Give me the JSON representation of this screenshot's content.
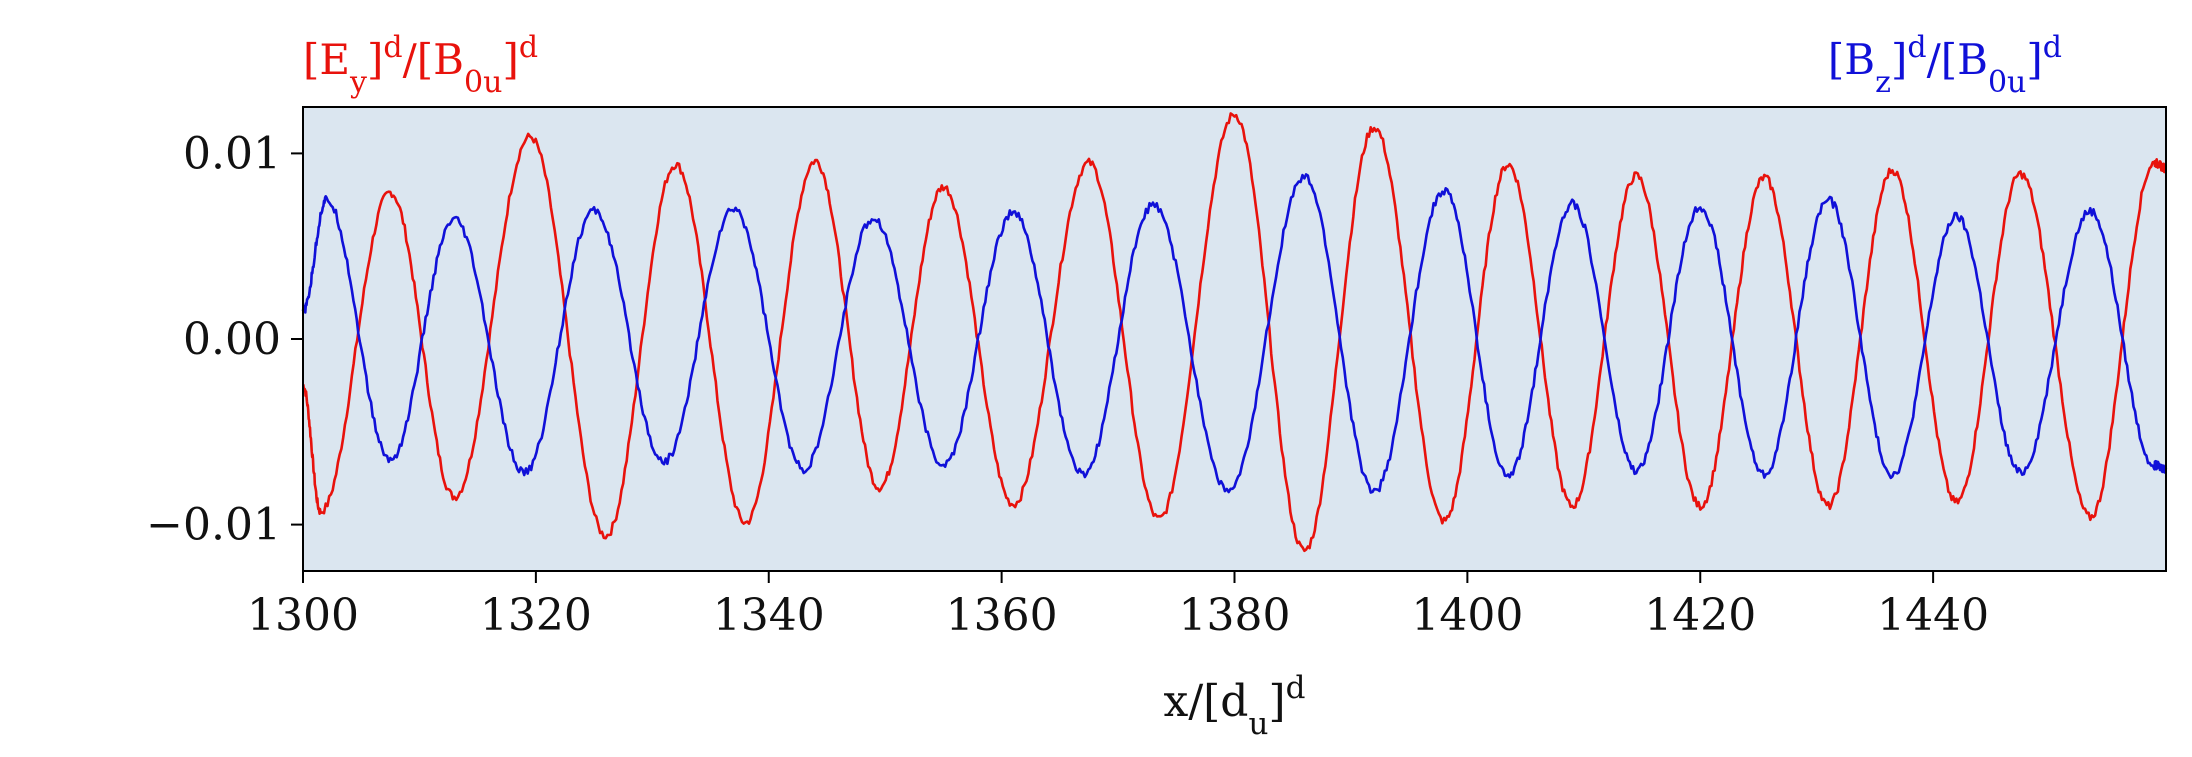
{
  "chart_data": {
    "type": "line",
    "xlabel": {
      "base": "x/[d",
      "sub": "u",
      "tail": "]",
      "sup": "d"
    },
    "xlim": [
      1300,
      1460
    ],
    "ylim": [
      -0.0125,
      0.0125
    ],
    "xticks": [
      1300,
      1320,
      1340,
      1360,
      1380,
      1400,
      1420,
      1440
    ],
    "xtick_labels": [
      "1300",
      "1320",
      "1340",
      "1360",
      "1380",
      "1400",
      "1420",
      "1440"
    ],
    "yticks": [
      0.01,
      0.0,
      -0.01
    ],
    "ytick_labels": [
      "0.01",
      "0.00",
      "−0.01"
    ],
    "grid": false,
    "background": "#dbe6f0",
    "legend_placement": "above-plot",
    "series": [
      {
        "name": "[Ey]d/[B0u]d",
        "label_parts": {
          "a": "[E",
          "a_sub": "y",
          "b": "]",
          "b_sup": "d",
          "c": "/[B",
          "c_sub": "0u",
          "d": "]",
          "d_sup": "d"
        },
        "color": "#e8120c",
        "x": [
          1300.0,
          1301.5,
          1307.5,
          1313.0,
          1319.5,
          1326.0,
          1332.0,
          1338.0,
          1344.0,
          1349.5,
          1355.0,
          1361.0,
          1367.5,
          1373.5,
          1380.0,
          1386.0,
          1392.0,
          1398.0,
          1403.5,
          1409.0,
          1414.5,
          1420.0,
          1425.5,
          1431.0,
          1436.5,
          1442.0,
          1447.5,
          1453.5,
          1459.0,
          1460.0
        ],
        "y": [
          -0.0025,
          -0.0093,
          0.0079,
          -0.0085,
          0.0109,
          -0.0106,
          0.0094,
          -0.0099,
          0.0096,
          -0.008,
          0.0082,
          -0.0089,
          0.0095,
          -0.0097,
          0.0121,
          -0.0114,
          0.0114,
          -0.0098,
          0.0094,
          -0.009,
          0.0088,
          -0.009,
          0.0087,
          -0.009,
          0.0091,
          -0.0088,
          0.0089,
          -0.0096,
          0.0095,
          0.0092
        ]
      },
      {
        "name": "[Bz]d/[B0u]d",
        "label_parts": {
          "a": "[B",
          "a_sub": "z",
          "b": "]",
          "b_sup": "d",
          "c": "/[B",
          "c_sub": "0u",
          "d": "]",
          "d_sup": "d"
        },
        "color": "#1010d8",
        "x": [
          1300.0,
          1302.0,
          1307.5,
          1313.0,
          1319.0,
          1325.0,
          1331.0,
          1337.0,
          1343.0,
          1349.0,
          1355.0,
          1361.0,
          1367.0,
          1373.0,
          1379.5,
          1386.0,
          1392.0,
          1398.0,
          1403.5,
          1409.0,
          1414.5,
          1420.0,
          1425.5,
          1431.0,
          1436.5,
          1442.0,
          1447.5,
          1453.5,
          1459.0,
          1460.0
        ],
        "y": [
          0.0015,
          0.0075,
          -0.0065,
          0.0064,
          -0.0072,
          0.0069,
          -0.0066,
          0.007,
          -0.007,
          0.0065,
          -0.0068,
          0.0068,
          -0.0073,
          0.0072,
          -0.0082,
          0.0087,
          -0.0082,
          0.008,
          -0.0074,
          0.0073,
          -0.0071,
          0.0071,
          -0.0073,
          0.0075,
          -0.0073,
          0.0066,
          -0.0072,
          0.0069,
          -0.0068,
          -0.007
        ]
      }
    ]
  }
}
